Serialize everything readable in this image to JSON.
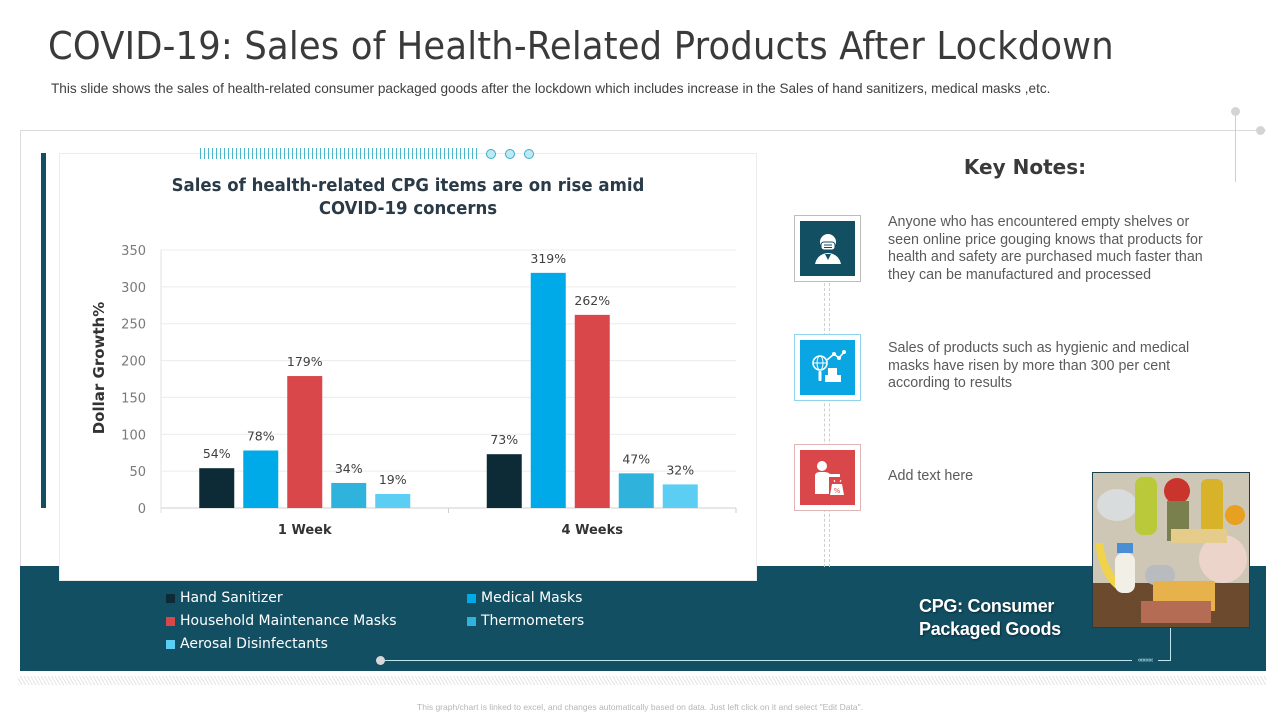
{
  "slide": {
    "title": "COVID-19: Sales of Health-Related Products After Lockdown",
    "subtitle": "This slide shows the sales of health-related consumer packaged goods after the lockdown which includes increase in the Sales of hand sanitizers, medical masks ,etc.",
    "footnote": "This graph/chart is linked to excel, and changes automatically based on data. Just left click on it and select \"Edit Data\"."
  },
  "chart_data": {
    "type": "bar",
    "title": "Sales of health-related CPG items are on rise amid COVID-19 concerns",
    "title_lines": [
      "Sales of health-related CPG items are on rise amid",
      "COVID-19 concerns"
    ],
    "xlabel": "",
    "ylabel": "Dollar Growth%",
    "ylim": [
      0,
      350
    ],
    "yticks": [
      0,
      50,
      100,
      150,
      200,
      250,
      300,
      350
    ],
    "grid": true,
    "legend_position": "bottom",
    "categories": [
      "1 Week",
      "4 Weeks"
    ],
    "series": [
      {
        "name": "Hand Sanitizer",
        "color": "#0d2b36",
        "values": [
          54,
          73
        ],
        "labels": [
          "54%",
          "73%"
        ]
      },
      {
        "name": "Medical Masks",
        "color": "#00a9e8",
        "values": [
          78,
          319
        ],
        "labels": [
          "78%",
          "319%"
        ]
      },
      {
        "name": "Household Maintenance Masks",
        "color": "#d9474a",
        "values": [
          179,
          262
        ],
        "labels": [
          "179%",
          "262%"
        ]
      },
      {
        "name": "Thermometers",
        "color": "#2fb2dc",
        "values": [
          34,
          47
        ],
        "labels": [
          "34%",
          "47%"
        ]
      },
      {
        "name": "Aerosal Disinfectants",
        "color": "#5ccdf3",
        "values": [
          19,
          32
        ],
        "labels": [
          "19%",
          "32%"
        ]
      }
    ]
  },
  "key_notes": {
    "title": "Key Notes:",
    "items": [
      {
        "icon": "masked-person-icon",
        "color": "#124f63",
        "border": "#bdbdbd",
        "text": "Anyone who has encountered empty shelves or seen online price gouging knows that products for health and safety are purchased much faster than they can be manufactured and processed"
      },
      {
        "icon": "global-market-analysis-icon",
        "color": "#0aa6e3",
        "border": "#8fd3ec",
        "text": "Sales of products such as hygienic and medical masks have risen by more than 300 per cent according to results"
      },
      {
        "icon": "salesperson-discount-icon",
        "color": "#d9474a",
        "border": "#e0b5b5",
        "text": "Add text here"
      }
    ]
  },
  "cpg_label": {
    "line1": "CPG: Consumer",
    "line2": "Packaged Goods"
  },
  "colors": {
    "primary": "#124f63",
    "accent_blue": "#00a9e8",
    "accent_red": "#d9474a"
  }
}
